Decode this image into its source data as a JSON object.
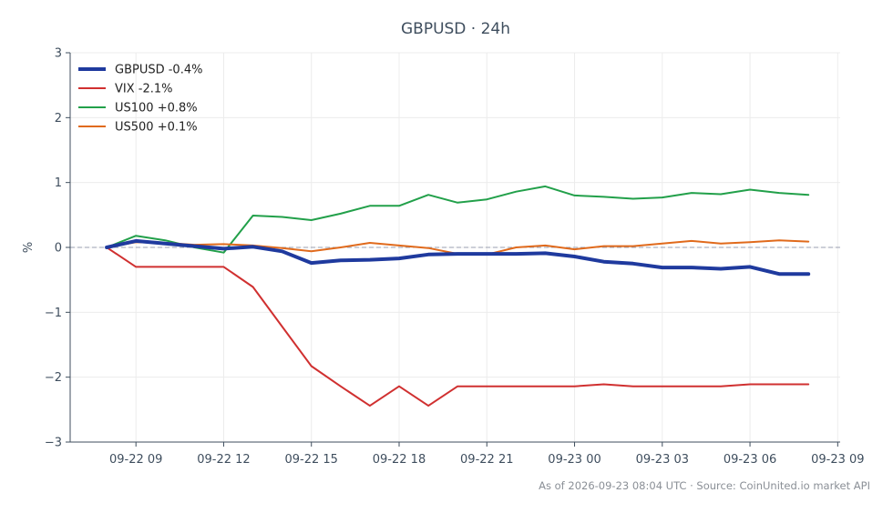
{
  "chart_data": {
    "type": "line",
    "title": "GBPUSD · 24h",
    "ylabel": "%",
    "xlabel": "",
    "ylim": [
      -3,
      3
    ],
    "yticks": [
      {
        "value": 3,
        "label": "3"
      },
      {
        "value": 2,
        "label": "2"
      },
      {
        "value": 1,
        "label": "1"
      },
      {
        "value": 0,
        "label": "0"
      },
      {
        "value": -1,
        "label": "−1"
      },
      {
        "value": -2,
        "label": "−2"
      },
      {
        "value": -3,
        "label": "−3"
      }
    ],
    "xlim": [
      "2026-09-22 06:45",
      "2026-09-23 09:05"
    ],
    "xticks": [
      {
        "value": "2026-09-22 09:00",
        "label": "09-22 09"
      },
      {
        "value": "2026-09-22 12:00",
        "label": "09-22 12"
      },
      {
        "value": "2026-09-22 15:00",
        "label": "09-22 15"
      },
      {
        "value": "2026-09-22 18:00",
        "label": "09-22 18"
      },
      {
        "value": "2026-09-22 21:00",
        "label": "09-22 21"
      },
      {
        "value": "2026-09-23 00:00",
        "label": "09-23 00"
      },
      {
        "value": "2026-09-23 03:00",
        "label": "09-23 03"
      },
      {
        "value": "2026-09-23 06:00",
        "label": "09-23 06"
      },
      {
        "value": "2026-09-23 09:00",
        "label": "09-23 09"
      }
    ],
    "x": [
      "2026-09-22 08:00",
      "2026-09-22 09:00",
      "2026-09-22 10:00",
      "2026-09-22 11:00",
      "2026-09-22 12:00",
      "2026-09-22 13:00",
      "2026-09-22 14:00",
      "2026-09-22 15:00",
      "2026-09-22 16:00",
      "2026-09-22 17:00",
      "2026-09-22 18:00",
      "2026-09-22 19:00",
      "2026-09-22 20:00",
      "2026-09-22 21:00",
      "2026-09-22 22:00",
      "2026-09-22 23:00",
      "2026-09-23 00:00",
      "2026-09-23 01:00",
      "2026-09-23 02:00",
      "2026-09-23 03:00",
      "2026-09-23 04:00",
      "2026-09-23 05:00",
      "2026-09-23 06:00",
      "2026-09-23 07:00",
      "2026-09-23 08:00"
    ],
    "grid": true,
    "legend_position": "top-left",
    "zero_line": true,
    "series": [
      {
        "name": "GBPUSD -0.4%",
        "color": "#1f3a9e",
        "width": "thick",
        "values": [
          0.0,
          0.1,
          0.06,
          0.02,
          -0.02,
          0.01,
          -0.06,
          -0.24,
          -0.2,
          -0.19,
          -0.17,
          -0.11,
          -0.1,
          -0.1,
          -0.1,
          -0.09,
          -0.14,
          -0.22,
          -0.25,
          -0.31,
          -0.31,
          -0.33,
          -0.3,
          -0.41,
          -0.41
        ]
      },
      {
        "name": "VIX -2.1%",
        "color": "#d03030",
        "width": "normal",
        "values": [
          0.0,
          -0.3,
          -0.3,
          -0.3,
          -0.3,
          -0.61,
          -1.22,
          -1.83,
          -2.14,
          -2.44,
          -2.14,
          -2.44,
          -2.14,
          -2.14,
          -2.14,
          -2.14,
          -2.14,
          -2.11,
          -2.14,
          -2.14,
          -2.14,
          -2.14,
          -2.11,
          -2.11,
          -2.11
        ]
      },
      {
        "name": "US100 +0.8%",
        "color": "#22a04a",
        "width": "normal",
        "values": [
          0.0,
          0.18,
          0.11,
          0.0,
          -0.08,
          0.49,
          0.47,
          0.42,
          0.52,
          0.64,
          0.64,
          0.81,
          0.69,
          0.74,
          0.86,
          0.94,
          0.8,
          0.78,
          0.75,
          0.77,
          0.84,
          0.82,
          0.89,
          0.84,
          0.81
        ]
      },
      {
        "name": "US500 +0.1%",
        "color": "#e06a1c",
        "width": "normal",
        "values": [
          0.0,
          0.08,
          0.07,
          0.04,
          0.05,
          0.03,
          -0.01,
          -0.06,
          0.0,
          0.07,
          0.03,
          -0.01,
          -0.1,
          -0.11,
          0.0,
          0.03,
          -0.03,
          0.02,
          0.02,
          0.06,
          0.1,
          0.06,
          0.08,
          0.11,
          0.09
        ]
      }
    ]
  },
  "footer": "As of 2026-09-23 08:04 UTC · Source: CoinUnited.io market API"
}
